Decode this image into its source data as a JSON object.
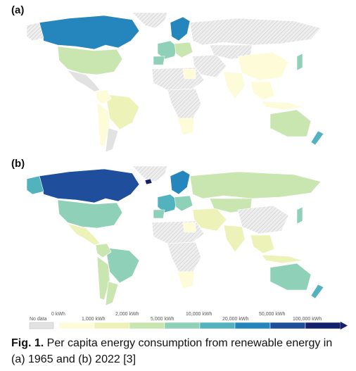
{
  "panels": [
    {
      "label": "(a)"
    },
    {
      "label": "(b)"
    }
  ],
  "legend": {
    "no_data": "No data",
    "thresholds_top": [
      "0 kWh",
      "2,000 kWh",
      "10,000 kWh",
      "50,000 kWh"
    ],
    "thresholds_bottom": [
      "1,000 kWh",
      "5,000 kWh",
      "20,000 kWh",
      "100,000 kWh"
    ],
    "colors": [
      "#fdfbd8",
      "#edf3b8",
      "#c9e6b1",
      "#8fd0b9",
      "#52b3bf",
      "#2586bd",
      "#1f4f9c",
      "#16216e"
    ],
    "no_data_color": "#e2e2e2"
  },
  "caption": {
    "label": "Fig. 1.",
    "text": " Per capita energy consumption from renewable energy in (a) 1965 and (b) 2022 [3]"
  }
}
